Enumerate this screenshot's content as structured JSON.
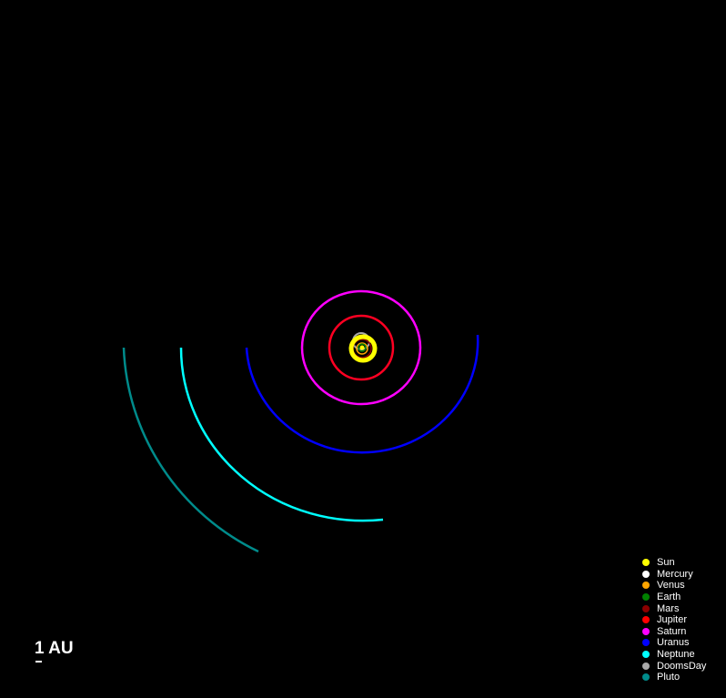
{
  "scale": {
    "label": "1 AU"
  },
  "legend": [
    {
      "name": "Sun",
      "color": "#ffff00"
    },
    {
      "name": "Mercury",
      "color": "#ffffff"
    },
    {
      "name": "Venus",
      "color": "#ffa500"
    },
    {
      "name": "Earth",
      "color": "#008000"
    },
    {
      "name": "Mars",
      "color": "#8b0000"
    },
    {
      "name": "Jupiter",
      "color": "#ff0000"
    },
    {
      "name": "Saturn",
      "color": "#ff00ff"
    },
    {
      "name": "Uranus",
      "color": "#0000ff"
    },
    {
      "name": "Neptune",
      "color": "#00ffff"
    },
    {
      "name": "DoomsDay",
      "color": "#a9a9a9"
    },
    {
      "name": "Pluto",
      "color": "#008b8b"
    }
  ]
}
